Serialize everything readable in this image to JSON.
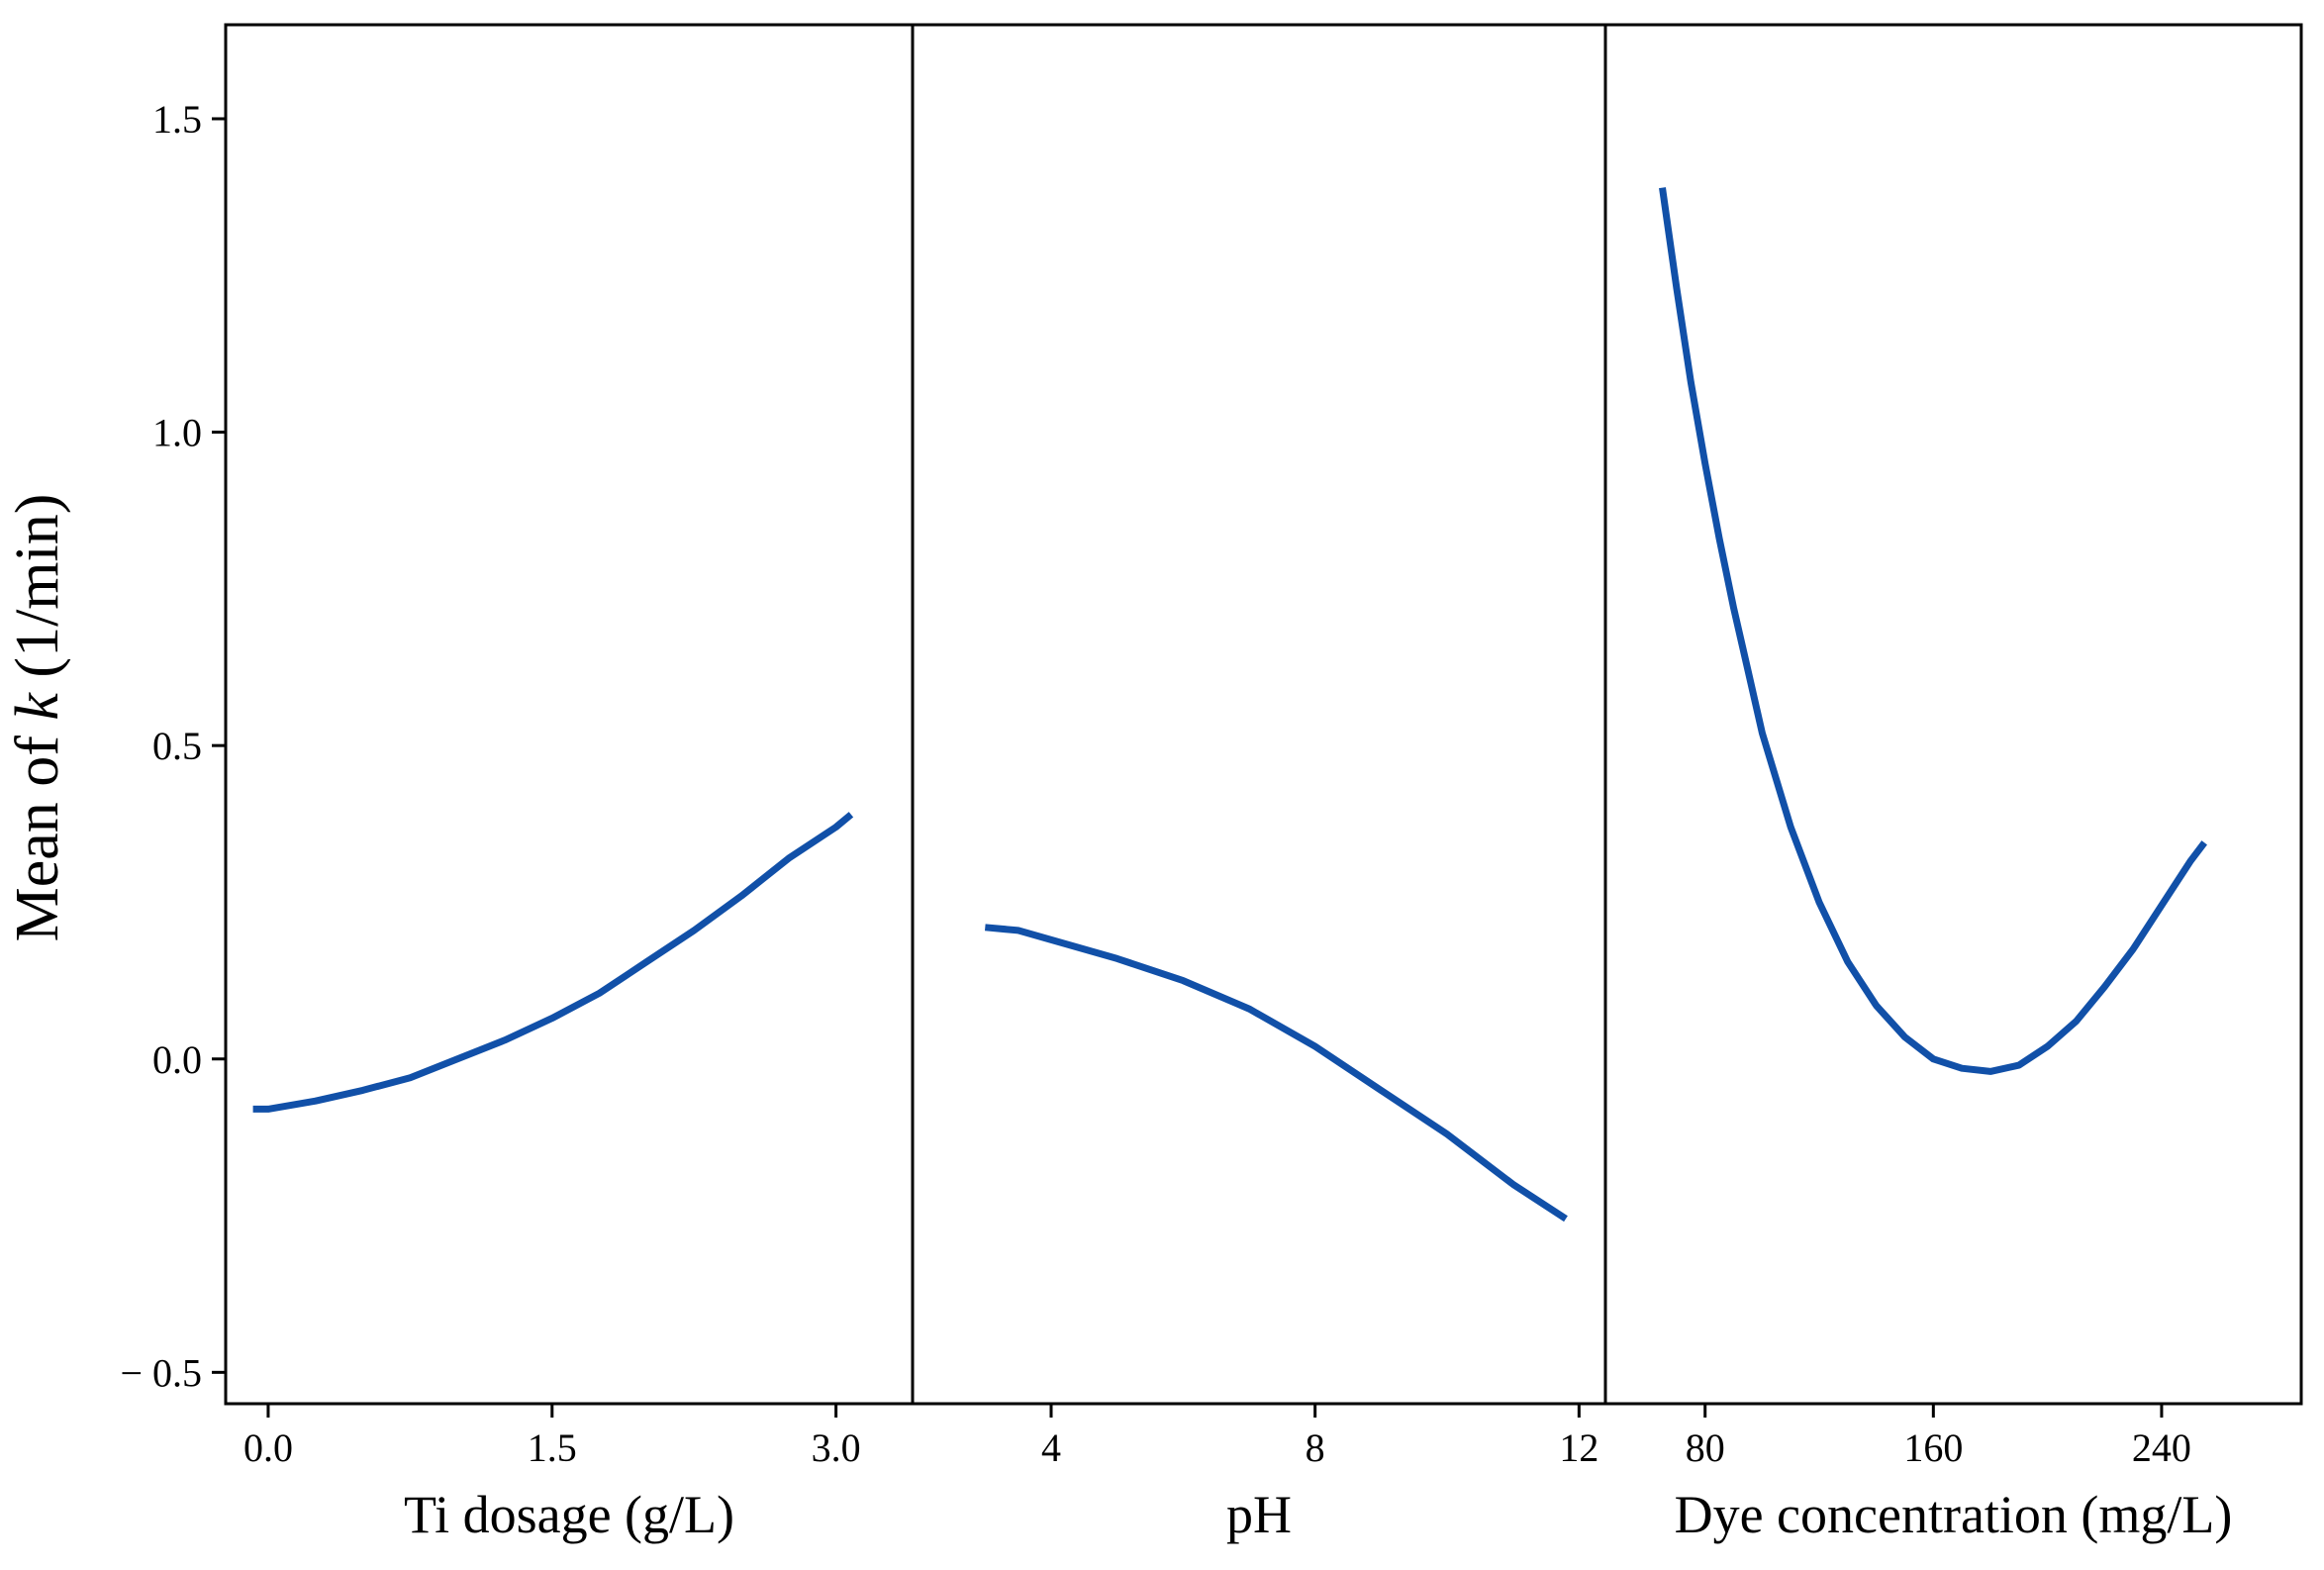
{
  "chart_data": {
    "type": "line",
    "title": "",
    "ylabel_prefix": "Mean of ",
    "ylabel_var": "k",
    "ylabel_suffix": " (1/min)",
    "ylim": [
      -0.55,
      1.65
    ],
    "yticks": [
      -0.5,
      0.0,
      0.5,
      1.0,
      1.5
    ],
    "ytick_labels": [
      "− 0.5",
      "0.0",
      "0.5",
      "1.0",
      "1.5"
    ],
    "line_color": "#1150a8",
    "grid": false,
    "legend": "none",
    "panels": [
      {
        "xlabel": "Ti dosage (g/L)",
        "xlim": [
          -0.12,
          3.3
        ],
        "xticks": [
          0.0,
          1.5,
          3.0
        ],
        "xtick_labels": [
          "0.0",
          "1.5",
          "3.0"
        ],
        "x": [
          -0.08,
          0.0,
          0.25,
          0.5,
          0.75,
          1.0,
          1.25,
          1.5,
          1.75,
          2.0,
          2.25,
          2.5,
          2.75,
          3.0,
          3.08
        ],
        "y": [
          -0.08,
          -0.08,
          -0.067,
          -0.05,
          -0.03,
          0.0,
          0.03,
          0.065,
          0.105,
          0.155,
          0.205,
          0.26,
          0.32,
          0.37,
          0.39
        ]
      },
      {
        "xlabel": "pH",
        "xlim": [
          2.2,
          12.1
        ],
        "xticks": [
          4,
          8,
          12
        ],
        "xtick_labels": [
          "4",
          "8",
          "12"
        ],
        "x": [
          3.0,
          3.5,
          4.0,
          5.0,
          6.0,
          7.0,
          8.0,
          9.0,
          10.0,
          11.0,
          11.8
        ],
        "y": [
          0.21,
          0.205,
          0.19,
          0.16,
          0.125,
          0.08,
          0.02,
          -0.05,
          -0.12,
          -0.2,
          -0.255
        ]
      },
      {
        "xlabel": "Dye concentration (mg/L)",
        "xlim": [
          52,
          282
        ],
        "xticks": [
          80,
          160,
          240
        ],
        "xtick_labels": [
          "80",
          "160",
          "240"
        ],
        "x": [
          65,
          70,
          75,
          80,
          85,
          90,
          95,
          100,
          110,
          120,
          130,
          140,
          150,
          160,
          170,
          180,
          190,
          200,
          210,
          220,
          230,
          240,
          250,
          255
        ],
        "y": [
          1.39,
          1.23,
          1.08,
          0.95,
          0.83,
          0.72,
          0.62,
          0.52,
          0.37,
          0.25,
          0.155,
          0.085,
          0.035,
          0.0,
          -0.015,
          -0.02,
          -0.01,
          0.02,
          0.06,
          0.115,
          0.175,
          0.245,
          0.315,
          0.345
        ]
      }
    ]
  }
}
